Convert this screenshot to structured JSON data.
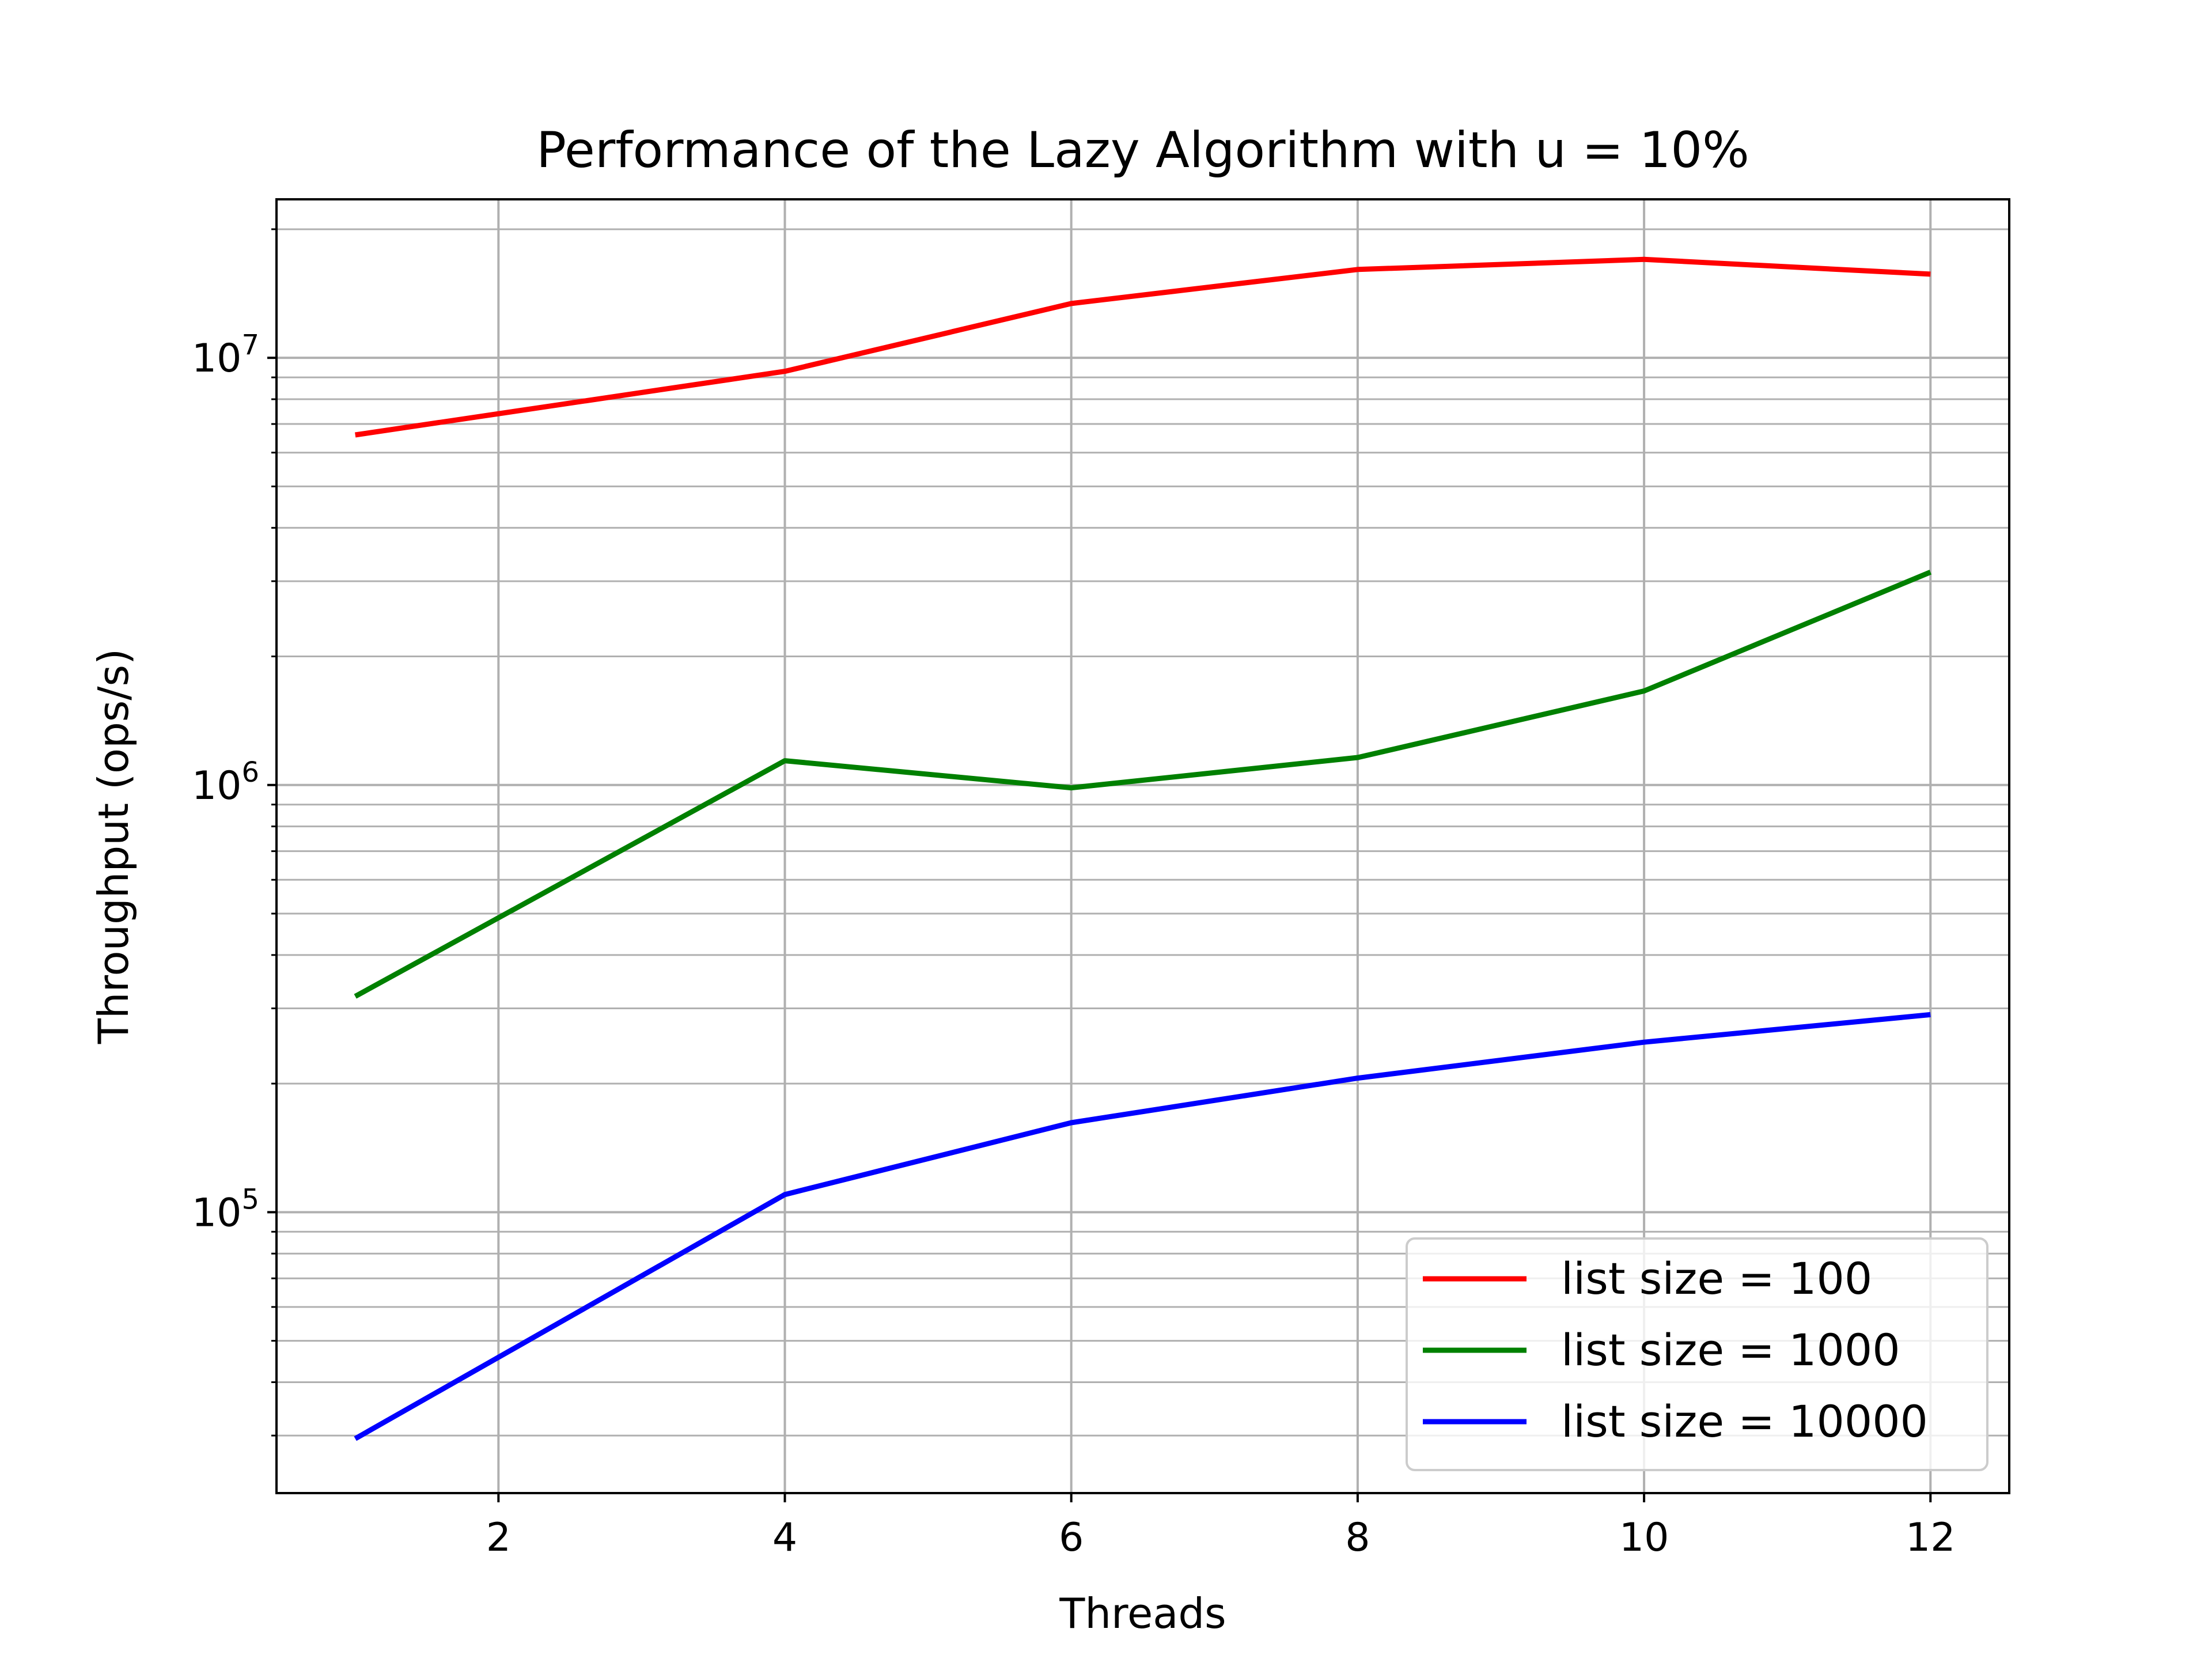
{
  "chart_data": {
    "type": "line",
    "title": "Performance of the Lazy Algorithm with u = 10%",
    "xlabel": "Threads",
    "ylabel": "Throughput (ops/s)",
    "yscale": "log",
    "grid": true,
    "grid_minor_y": true,
    "xlim": [
      0.45,
      12.55
    ],
    "ylim": [
      22000,
      23500000
    ],
    "x": [
      1,
      4,
      6,
      8,
      10,
      12
    ],
    "xticks": [
      2,
      4,
      6,
      8,
      10,
      12
    ],
    "yticks": [
      {
        "value": 100000,
        "base": "10",
        "exp": "5"
      },
      {
        "value": 1000000,
        "base": "10",
        "exp": "6"
      },
      {
        "value": 10000000,
        "base": "10",
        "exp": "7"
      }
    ],
    "legend_position": "lower-right",
    "series": [
      {
        "name": "list size = 100",
        "color": "#ff0000",
        "values": [
          6600000,
          9300000,
          13400000,
          16100000,
          17000000,
          15700000
        ]
      },
      {
        "name": "list size = 1000",
        "color": "#008000",
        "values": [
          320000,
          1140000,
          985000,
          1160000,
          1660000,
          3150000
        ]
      },
      {
        "name": "list size = 10000",
        "color": "#0000ff",
        "values": [
          29500,
          110000,
          162000,
          206000,
          250000,
          290000
        ]
      }
    ]
  }
}
